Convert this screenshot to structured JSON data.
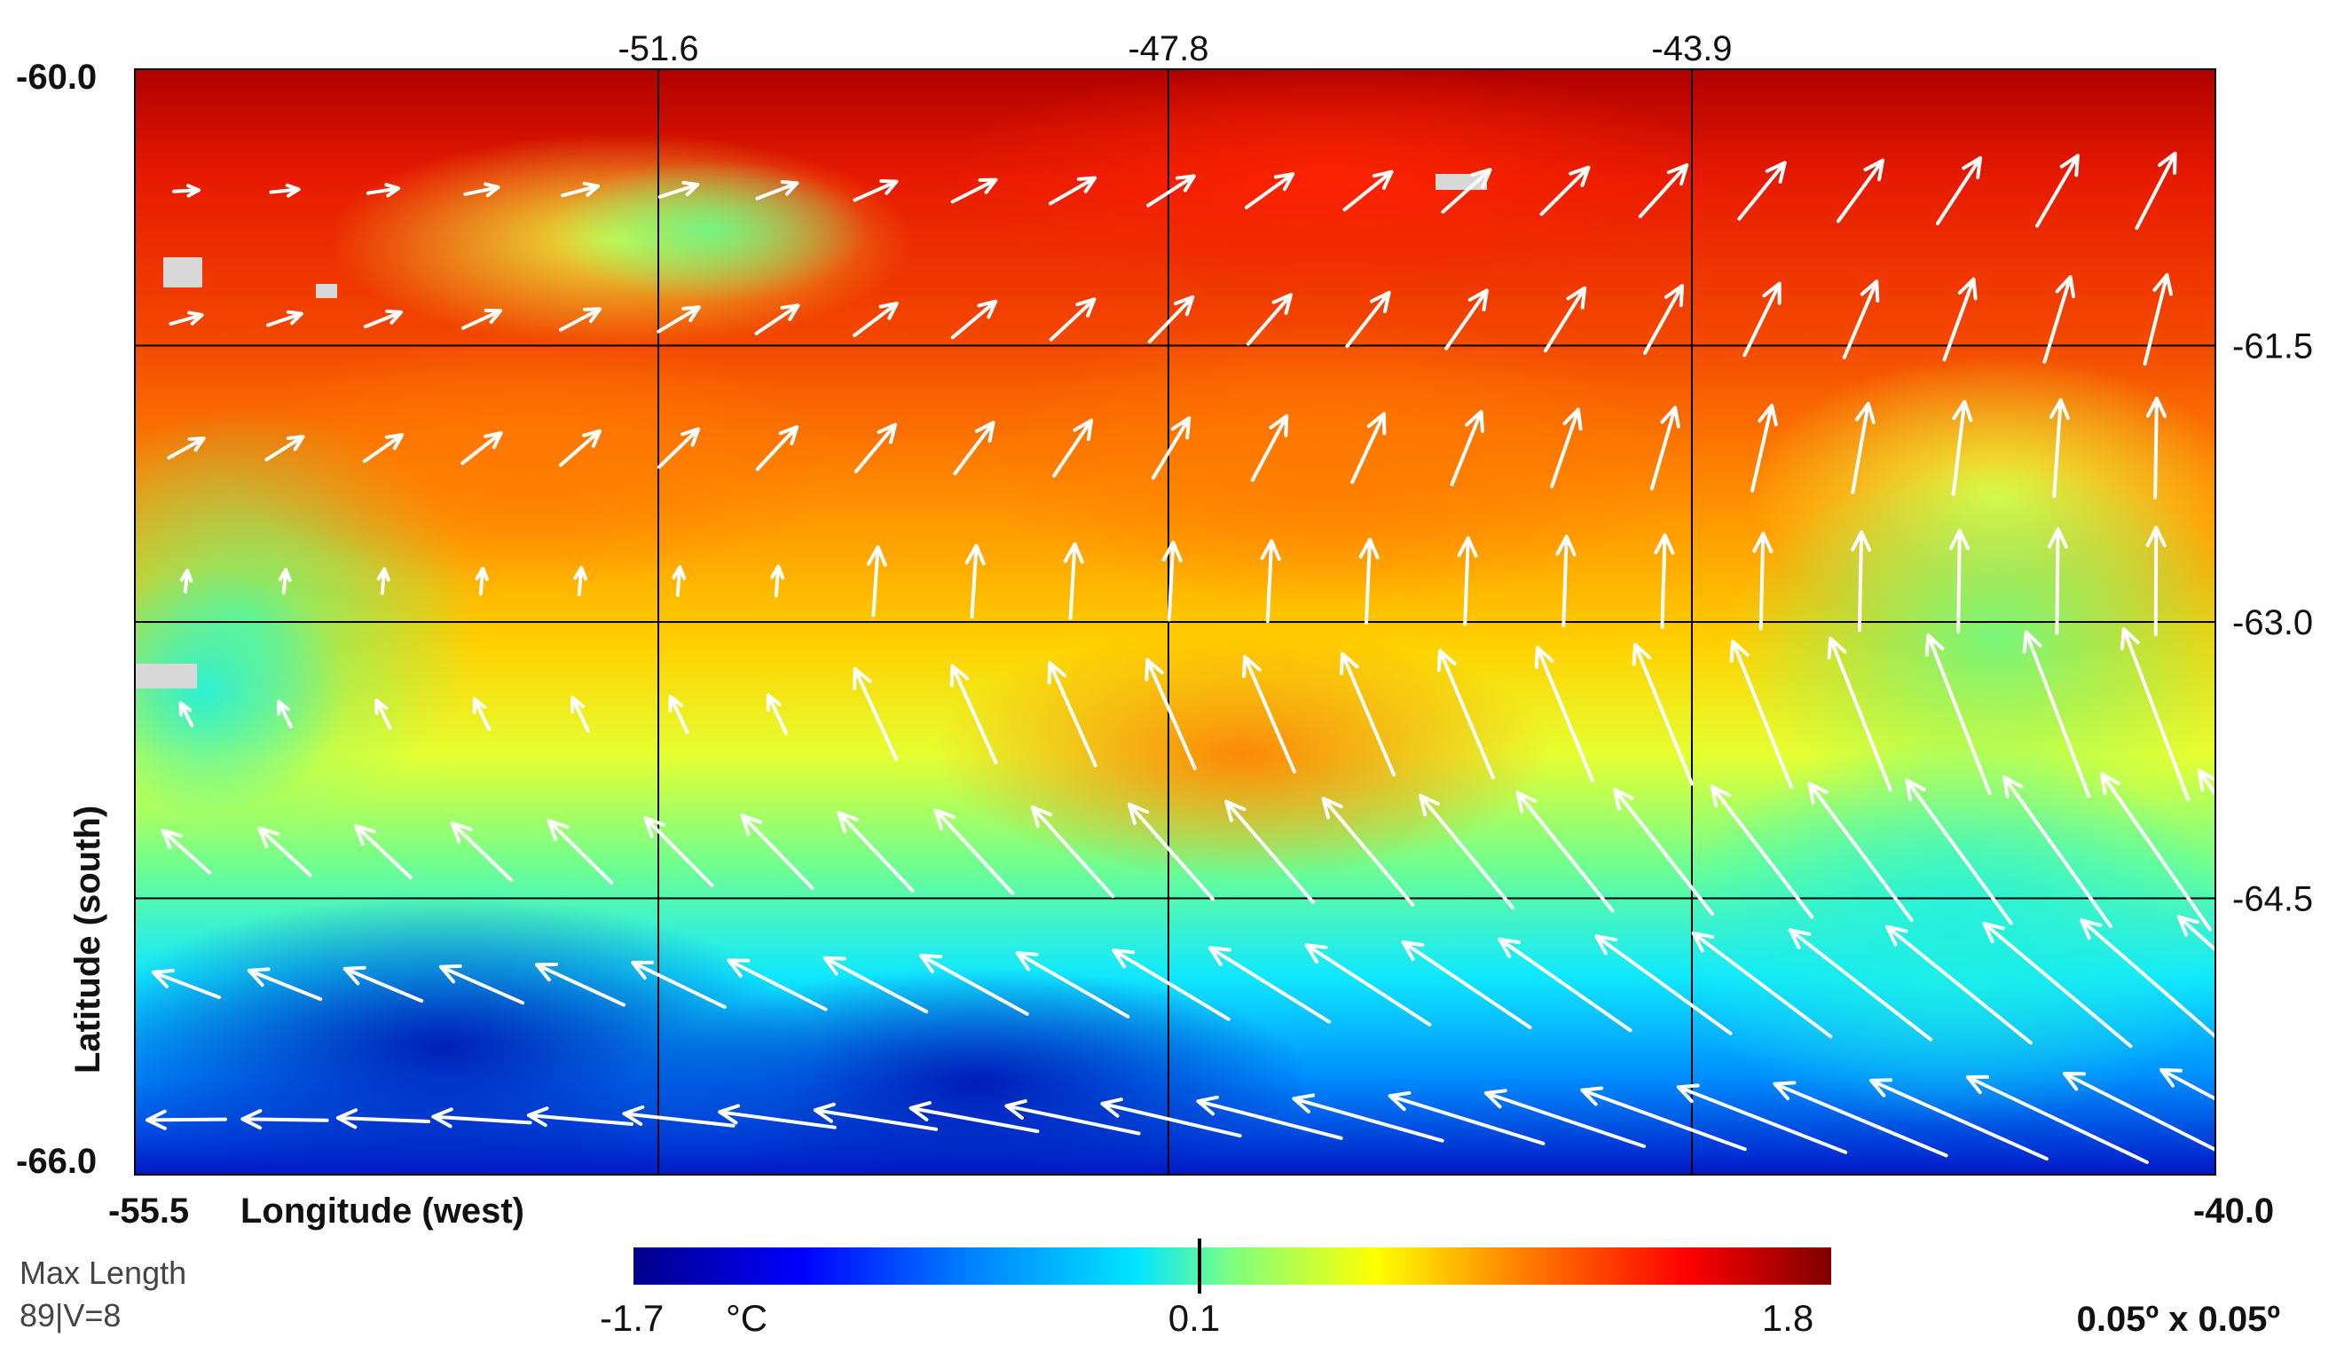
{
  "map": {
    "x_axis_title": "Longitude (west)",
    "y_axis_title": "Latitude (south)",
    "lon_min_label": "-55.5",
    "lon_max_label": "-40.0",
    "lat_top_label": "-60.0",
    "lat_bottom_label": "-66.0",
    "lon_min": -55.5,
    "lon_max": -40.0,
    "lat_top": -60.0,
    "lat_bottom": -66.0,
    "top_ticks": [
      {
        "value": -51.6,
        "label": "-51.6"
      },
      {
        "value": -47.8,
        "label": "-47.8"
      },
      {
        "value": -43.9,
        "label": "-43.9"
      }
    ],
    "right_ticks": [
      {
        "value": -61.5,
        "label": "-61.5"
      },
      {
        "value": -63.0,
        "label": "-63.0"
      },
      {
        "value": -64.5,
        "label": "-64.5"
      }
    ],
    "grid": true,
    "field": "sea surface temperature anomaly with current vectors"
  },
  "legend": {
    "vector_label_line1": "Max Length",
    "vector_label_line2": "89|V=8",
    "colorbar_min": "-1.7",
    "colorbar_unit": "°C",
    "colorbar_mid": "0.1",
    "colorbar_max": "1.8",
    "resolution": "0.05º x 0.05º",
    "colors": [
      "#00008b",
      "#0000ff",
      "#0080ff",
      "#00e5ff",
      "#7fff80",
      "#ffff00",
      "#ff8000",
      "#ff0000",
      "#800000"
    ]
  }
}
